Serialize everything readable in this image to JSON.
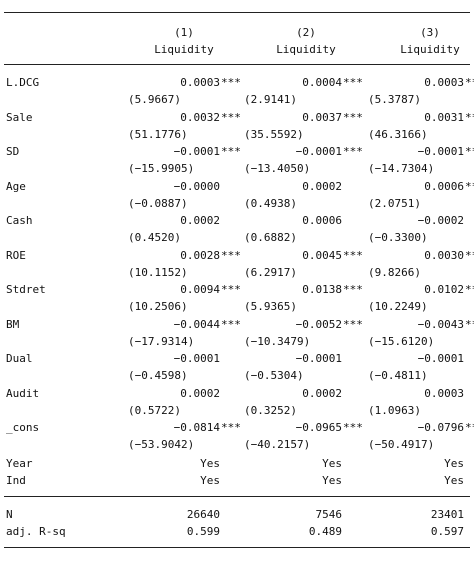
{
  "header": {
    "col_numbers": [
      "(1)",
      "(2)",
      "(3)"
    ],
    "dep_var": [
      "Liquidity",
      "Liquidity",
      "Liquidity"
    ]
  },
  "rows": [
    {
      "label": "L.DCG",
      "coef": [
        [
          "0.0003",
          "***"
        ],
        [
          "0.0004",
          "***"
        ],
        [
          "0.0003",
          "***"
        ]
      ],
      "t": [
        "(5.9667)",
        "(2.9141)",
        "(5.3787)"
      ]
    },
    {
      "label": "Sale",
      "coef": [
        [
          "0.0032",
          "***"
        ],
        [
          "0.0037",
          "***"
        ],
        [
          "0.0031",
          "***"
        ]
      ],
      "t": [
        "(51.1776)",
        "(35.5592)",
        "(46.3166)"
      ]
    },
    {
      "label": "SD",
      "coef": [
        [
          "−0.0001",
          "***"
        ],
        [
          "−0.0001",
          "***"
        ],
        [
          "−0.0001",
          "***"
        ]
      ],
      "t": [
        "(−15.9905)",
        "(−13.4050)",
        "(−14.7304)"
      ]
    },
    {
      "label": "Age",
      "coef": [
        [
          "−0.0000",
          ""
        ],
        [
          "0.0002",
          ""
        ],
        [
          "0.0006",
          "**"
        ]
      ],
      "t": [
        "(−0.0887)",
        "(0.4938)",
        "(2.0751)"
      ]
    },
    {
      "label": "Cash",
      "coef": [
        [
          "0.0002",
          ""
        ],
        [
          "0.0006",
          ""
        ],
        [
          "−0.0002",
          ""
        ]
      ],
      "t": [
        "(0.4520)",
        "(0.6882)",
        "(−0.3300)"
      ]
    },
    {
      "label": "ROE",
      "coef": [
        [
          "0.0028",
          "***"
        ],
        [
          "0.0045",
          "***"
        ],
        [
          "0.0030",
          "***"
        ]
      ],
      "t": [
        "(10.1152)",
        "(6.2917)",
        "(9.8266)"
      ]
    },
    {
      "label": "Stdret",
      "coef": [
        [
          "0.0094",
          "***"
        ],
        [
          "0.0138",
          "***"
        ],
        [
          "0.0102",
          "***"
        ]
      ],
      "t": [
        "(10.2506)",
        "(5.9365)",
        "(10.2249)"
      ]
    },
    {
      "label": "BM",
      "coef": [
        [
          "−0.0044",
          "***"
        ],
        [
          "−0.0052",
          "***"
        ],
        [
          "−0.0043",
          "***"
        ]
      ],
      "t": [
        "(−17.9314)",
        "(−10.3479)",
        "(−15.6120)"
      ]
    },
    {
      "label": "Dual",
      "coef": [
        [
          "−0.0001",
          ""
        ],
        [
          "−0.0001",
          ""
        ],
        [
          "−0.0001",
          ""
        ]
      ],
      "t": [
        "(−0.4598)",
        "(−0.5304)",
        "(−0.4811)"
      ]
    },
    {
      "label": "Audit",
      "coef": [
        [
          "0.0002",
          ""
        ],
        [
          "0.0002",
          ""
        ],
        [
          "0.0003",
          ""
        ]
      ],
      "t": [
        "(0.5722)",
        "(0.3252)",
        "(1.0963)"
      ]
    },
    {
      "label": "_cons",
      "coef": [
        [
          "−0.0814",
          "***"
        ],
        [
          "−0.0965",
          "***"
        ],
        [
          "−0.0796",
          "***"
        ]
      ],
      "t": [
        "(−53.9042)",
        "(−40.2157)",
        "(−50.4917)"
      ]
    }
  ],
  "fixed_effects": [
    {
      "label": "Year",
      "values": [
        "Yes",
        "Yes",
        "Yes"
      ]
    },
    {
      "label": "Ind",
      "values": [
        "Yes",
        "Yes",
        "Yes"
      ]
    }
  ],
  "stats": [
    {
      "label": "N",
      "values": [
        "26640",
        "7546",
        "23401"
      ]
    },
    {
      "label": "adj. R-sq",
      "values": [
        "0.599",
        "0.489",
        "0.597"
      ]
    }
  ]
}
